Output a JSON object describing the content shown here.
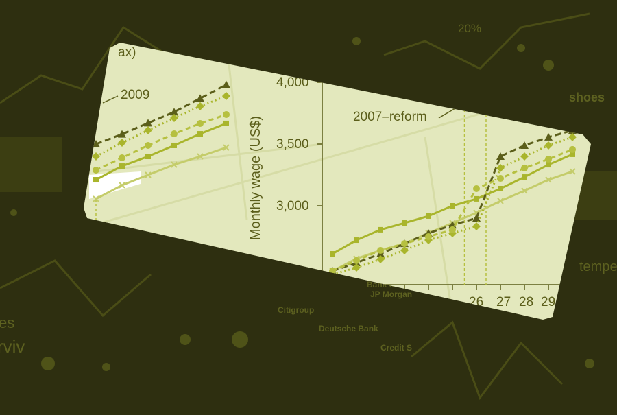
{
  "background": {
    "labels": [
      "20%",
      "shoes",
      "tempe",
      "es",
      "rviv",
      "Citigroup",
      "Deutsche Bank",
      "Credit S",
      "JP Morgan",
      "Bank of"
    ],
    "colors": {
      "base": "#2e2f10",
      "faint": "#5d6120"
    }
  },
  "card": {
    "top_left_fragment": "ax)",
    "label_2009": "2009",
    "label_reform": "2007–reform",
    "label_pct": "0%",
    "y_axis_title": "Monthly wage (US$)",
    "y_ticks": [
      "4,000",
      "3,500",
      "3,000"
    ],
    "x_ticks": [
      "26",
      "27",
      "28",
      "29"
    ],
    "colors": {
      "card": "#e3e8bd",
      "dark": "#5b5e1a",
      "mid": "#a9b52c",
      "light": "#c4cc6a"
    }
  },
  "chart_data": [
    {
      "type": "line",
      "panel": "left",
      "x": [
        1,
        2,
        3,
        4,
        5,
        6
      ],
      "series": [
        {
          "style": "dashed-triangle",
          "color": "#5b5e1a",
          "values": [
            3500,
            3580,
            3670,
            3760,
            3870,
            3980
          ]
        },
        {
          "style": "dotted-diamond",
          "color": "#a9b52c",
          "values": [
            3400,
            3511,
            3611,
            3711,
            3806,
            3889
          ]
        },
        {
          "style": "dashed-circle",
          "color": "#b6c040",
          "values": [
            3289,
            3389,
            3489,
            3583,
            3667,
            3739
          ]
        },
        {
          "style": "solid-square",
          "color": "#a9b52c",
          "values": [
            3211,
            3322,
            3400,
            3489,
            3583,
            3667
          ]
        },
        {
          "style": "solid-cross",
          "color": "#c4cc6a",
          "values": [
            3056,
            3167,
            3250,
            3333,
            3400,
            3472
          ]
        }
      ]
    },
    {
      "type": "line",
      "panel": "right",
      "ylabel": "Monthly wage (US$)",
      "x": [
        20,
        21,
        22,
        23,
        24,
        25,
        26,
        27,
        28,
        29,
        30
      ],
      "ylim": [
        2500,
        4000
      ],
      "series": [
        {
          "style": "solid-square",
          "color": "#a9b52c",
          "values": [
            2611,
            2722,
            2806,
            2861,
            2917,
            3000,
            3056,
            3139,
            3233,
            3333,
            3417
          ]
        },
        {
          "style": "solid-cross",
          "color": "#c4cc6a",
          "values": [
            2472,
            2572,
            2639,
            2694,
            2778,
            2861,
            2944,
            3039,
            3122,
            3211,
            3278
          ]
        },
        {
          "style": "dashed-triangle",
          "color": "#5b5e1a",
          "values": [
            2472,
            2539,
            2611,
            2694,
            2778,
            2844,
            2900,
            3400,
            3489,
            3556,
            3611
          ]
        },
        {
          "style": "dotted-diamond",
          "color": "#a9b52c",
          "values": [
            2444,
            2500,
            2567,
            2639,
            2722,
            2778,
            2833,
            3306,
            3400,
            3489,
            3556
          ]
        },
        {
          "style": "dashed-circle",
          "color": "#b6c040",
          "values": [
            2472,
            2556,
            2639,
            2694,
            2750,
            2806,
            3139,
            3222,
            3306,
            3378,
            3456
          ]
        }
      ],
      "reference_lines_x": [
        25.5,
        26.4
      ]
    }
  ]
}
